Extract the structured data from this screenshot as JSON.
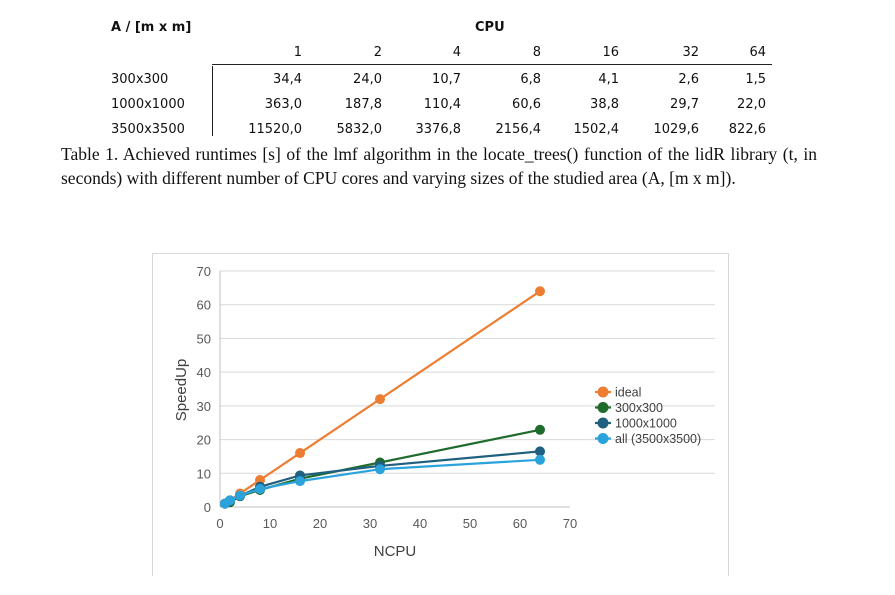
{
  "table": {
    "corner_label": "A / [m x m]",
    "group_header": "CPU",
    "cpu_headers": [
      "1",
      "2",
      "4",
      "8",
      "16",
      "32",
      "64"
    ],
    "rows": [
      {
        "label": "300x300",
        "values": [
          "34,4",
          "24,0",
          "10,7",
          "6,8",
          "4,1",
          "2,6",
          "1,5"
        ]
      },
      {
        "label": "1000x1000",
        "values": [
          "363,0",
          "187,8",
          "110,4",
          "60,6",
          "38,8",
          "29,7",
          "22,0"
        ]
      },
      {
        "label": "3500x3500",
        "values": [
          "11520,0",
          "5832,0",
          "3376,8",
          "2156,4",
          "1502,4",
          "1029,6",
          "822,6"
        ]
      }
    ]
  },
  "caption": "Table 1. Achieved runtimes [s] of the lmf algorithm in the locate_trees() function of the lidR library (t, in seconds) with different number of CPU cores and varying sizes of the studied area (A, [m x m]).",
  "chart_data": {
    "type": "scatter",
    "title": "",
    "xlabel": "NCPU",
    "ylabel": "SpeedUp",
    "xlim": [
      0,
      70
    ],
    "ylim": [
      0,
      70
    ],
    "xticks": [
      "0",
      "10",
      "20",
      "30",
      "40",
      "50",
      "60",
      "70"
    ],
    "yticks": [
      "0",
      "10",
      "20",
      "30",
      "40",
      "50",
      "60",
      "70"
    ],
    "grid": true,
    "legend_position": "right",
    "series": [
      {
        "name": "ideal",
        "color": "#ed7d31",
        "x": [
          1,
          2,
          4,
          8,
          16,
          32,
          64
        ],
        "y": [
          1,
          2,
          4,
          8,
          16,
          32,
          64
        ]
      },
      {
        "name": "300x300",
        "color": "#1e6b2c",
        "x": [
          1,
          2,
          4,
          8,
          16,
          32,
          64
        ],
        "y": [
          1,
          1.43,
          3.21,
          5.06,
          8.39,
          13.2,
          22.9
        ]
      },
      {
        "name": "1000x1000",
        "color": "#1f5f7f",
        "x": [
          1,
          2,
          4,
          8,
          16,
          32,
          64
        ],
        "y": [
          1,
          1.93,
          3.29,
          5.99,
          9.36,
          12.2,
          16.5
        ]
      },
      {
        "name": "all (3500x3500)",
        "color": "#2aa3dd",
        "x": [
          1,
          2,
          4,
          8,
          16,
          32,
          64
        ],
        "y": [
          1,
          1.98,
          3.41,
          5.34,
          7.67,
          11.2,
          14.0
        ]
      }
    ]
  }
}
